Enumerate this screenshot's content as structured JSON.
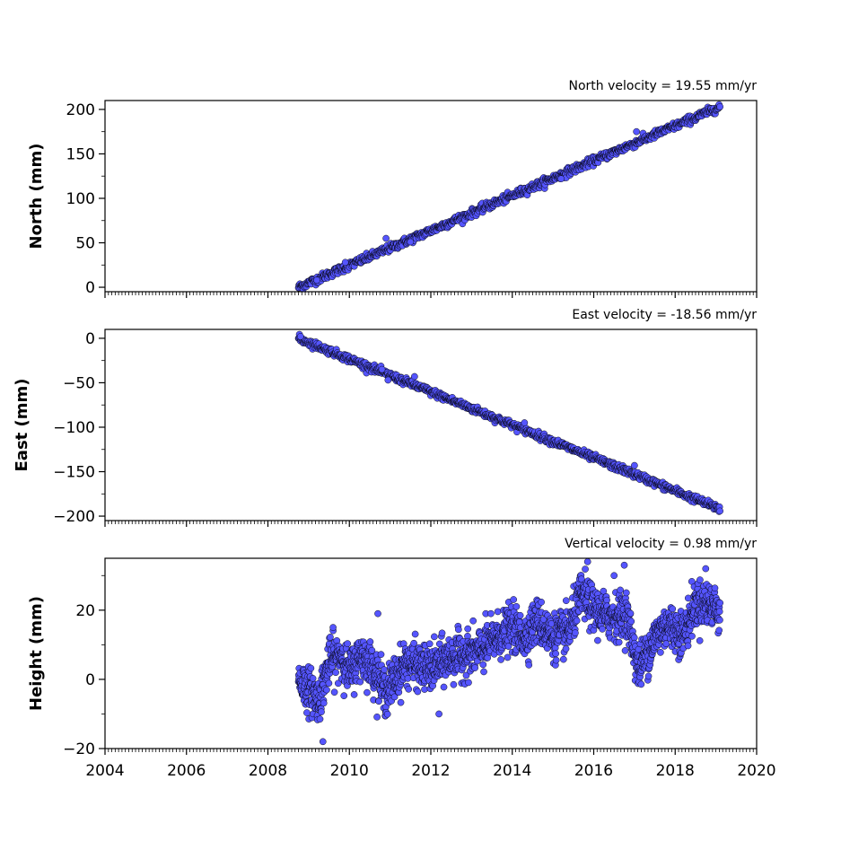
{
  "chart_data": [
    {
      "type": "scatter",
      "title": "North velocity = 19.55 mm/yr",
      "ylabel": "North (mm)",
      "xlim": [
        2004,
        2020
      ],
      "ylim": [
        -5,
        210
      ],
      "yticks": [
        0,
        50,
        100,
        150,
        200
      ],
      "ytick_labels": [
        "0",
        "50",
        "100",
        "150",
        "200"
      ],
      "trend": {
        "x_start": 2008.75,
        "y_start": 0,
        "x_end": 2019.1,
        "y_end": 203,
        "noise": 2.2
      },
      "outliers": [
        [
          2010.9,
          55
        ],
        [
          2017.05,
          175
        ],
        [
          2009.2,
          8
        ],
        [
          2011.5,
          51
        ],
        [
          2009.9,
          28
        ],
        [
          2015.2,
          122
        ]
      ]
    },
    {
      "type": "scatter",
      "title": "East velocity = -18.56 mm/yr",
      "ylabel": "East (mm)",
      "xlim": [
        2004,
        2020
      ],
      "ylim": [
        -205,
        10
      ],
      "yticks": [
        0,
        -50,
        -100,
        -150,
        -200
      ],
      "ytick_labels": [
        "0",
        "−50",
        "−100",
        "−150",
        "−200"
      ],
      "trend": {
        "x_start": 2008.75,
        "y_start": 0,
        "x_end": 2019.1,
        "y_end": -192,
        "noise": 2.0
      },
      "outliers": [
        [
          2010.95,
          -47
        ],
        [
          2011.6,
          -43
        ],
        [
          2017.0,
          -143
        ],
        [
          2014.3,
          -95
        ],
        [
          2010.8,
          -35
        ],
        [
          2008.8,
          2
        ]
      ]
    },
    {
      "type": "scatter",
      "title": "Vertical velocity = 0.98 mm/yr",
      "ylabel": "Height (mm)",
      "xlim": [
        2004,
        2020
      ],
      "ylim": [
        -20,
        35
      ],
      "yticks": [
        -20,
        0,
        20
      ],
      "ytick_labels": [
        "−20",
        "0",
        "20"
      ],
      "profile": [
        [
          2008.75,
          0
        ],
        [
          2009.0,
          -3
        ],
        [
          2009.25,
          -6
        ],
        [
          2009.5,
          5
        ],
        [
          2009.8,
          7
        ],
        [
          2010.0,
          2
        ],
        [
          2010.3,
          7
        ],
        [
          2010.6,
          3
        ],
        [
          2010.9,
          -4
        ],
        [
          2011.1,
          0
        ],
        [
          2011.4,
          5
        ],
        [
          2011.7,
          4
        ],
        [
          2012.0,
          3
        ],
        [
          2012.4,
          6
        ],
        [
          2012.8,
          7
        ],
        [
          2013.2,
          8
        ],
        [
          2013.6,
          12
        ],
        [
          2014.0,
          15
        ],
        [
          2014.3,
          12
        ],
        [
          2014.6,
          17
        ],
        [
          2015.0,
          12
        ],
        [
          2015.4,
          14
        ],
        [
          2015.7,
          25
        ],
        [
          2016.0,
          20
        ],
        [
          2016.4,
          18
        ],
        [
          2016.8,
          19
        ],
        [
          2017.1,
          3
        ],
        [
          2017.5,
          12
        ],
        [
          2017.8,
          16
        ],
        [
          2018.2,
          13
        ],
        [
          2018.5,
          22
        ],
        [
          2018.8,
          22
        ],
        [
          2019.1,
          20
        ]
      ],
      "noise": 3.2,
      "outliers": [
        [
          2009.35,
          -18
        ],
        [
          2015.85,
          34
        ],
        [
          2016.75,
          33
        ],
        [
          2012.2,
          -10
        ],
        [
          2010.7,
          19
        ],
        [
          2009.6,
          15
        ],
        [
          2018.75,
          32
        ],
        [
          2016.5,
          30
        ]
      ]
    }
  ],
  "x_axis": {
    "ticks": [
      2004,
      2006,
      2008,
      2010,
      2012,
      2014,
      2016,
      2018,
      2020
    ],
    "tick_labels": [
      "2004",
      "2006",
      "2008",
      "2010",
      "2012",
      "2014",
      "2016",
      "2018",
      "2020"
    ]
  },
  "style": {
    "marker_fill": "#5555ff",
    "marker_edge": "#000000",
    "axis_color": "#000000"
  }
}
